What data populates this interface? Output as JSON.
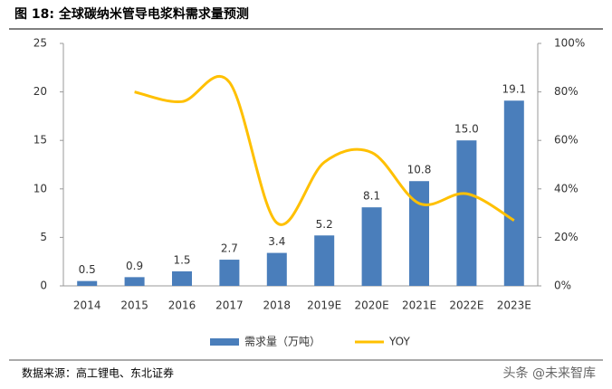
{
  "chart_data": {
    "type": "bar-line",
    "title": "图 18: 全球碳纳米管导电浆料需求量预测",
    "source": "数据来源：高工锂电、东北证券",
    "watermark": "头条 @未来智库",
    "categories": [
      "2014",
      "2015",
      "2016",
      "2017",
      "2018",
      "2019E",
      "2020E",
      "2021E",
      "2022E",
      "2023E"
    ],
    "series": [
      {
        "name": "需求量（万吨）",
        "type": "bar",
        "color": "#4a7ebb",
        "values": [
          0.5,
          0.9,
          1.5,
          2.7,
          3.4,
          5.2,
          8.1,
          10.8,
          15.0,
          19.1
        ],
        "value_labels": [
          "0.5",
          "0.9",
          "1.5",
          "2.7",
          "3.4",
          "5.2",
          "8.1",
          "10.8",
          "15.0",
          "19.1"
        ]
      },
      {
        "name": "YOY",
        "type": "line",
        "axis": "y2",
        "color": "#ffc000",
        "values": [
          null,
          80,
          76,
          84,
          26,
          51,
          55,
          34,
          38,
          27
        ]
      }
    ],
    "ylim": [
      0,
      25
    ],
    "yticks": [
      0,
      5,
      10,
      15,
      20,
      25
    ],
    "y2lim": [
      0,
      100
    ],
    "y2ticks": [
      {
        "value": 0,
        "label": "0%"
      },
      {
        "value": 20,
        "label": "20%"
      },
      {
        "value": 40,
        "label": "40%"
      },
      {
        "value": 60,
        "label": "60%"
      },
      {
        "value": 80,
        "label": "80%"
      },
      {
        "value": 100,
        "label": "100%"
      }
    ],
    "legend": "bottom"
  }
}
